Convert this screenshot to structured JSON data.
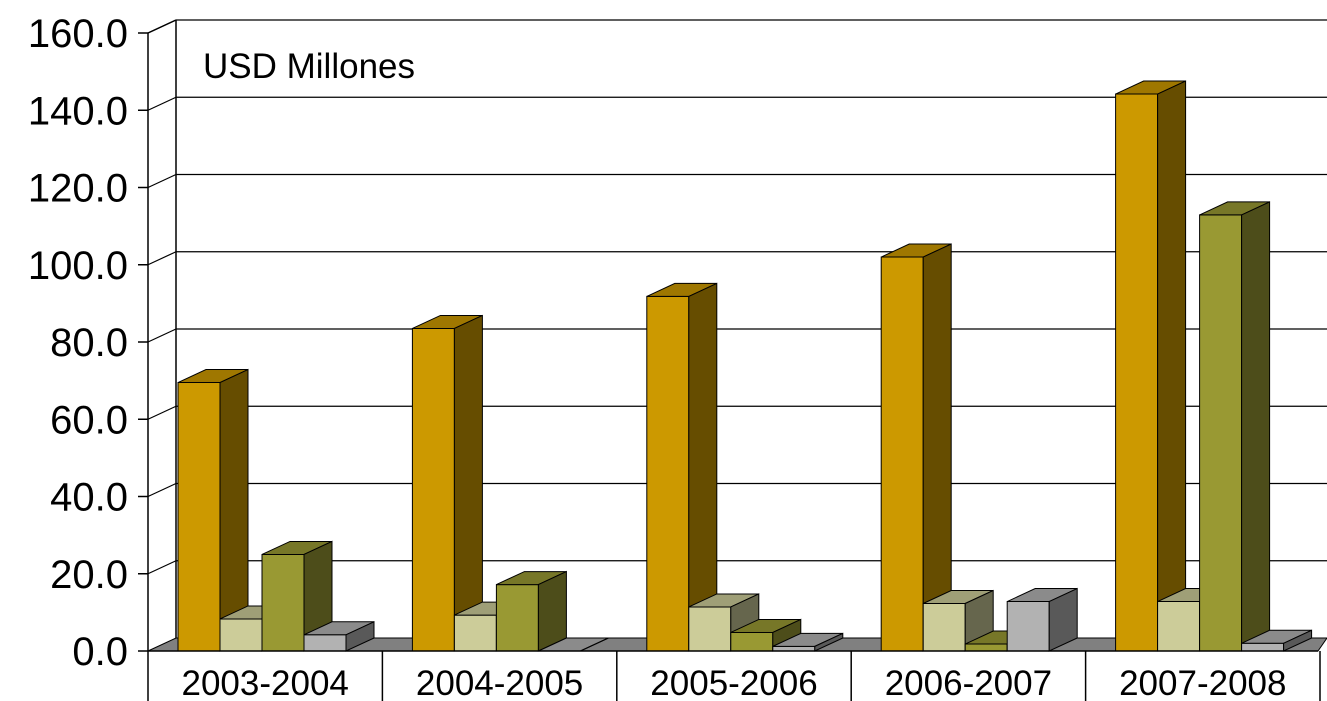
{
  "chart_data": {
    "type": "bar",
    "style": "3d-clustered-column",
    "unit_label": "USD Millones",
    "categories": [
      "2003-2004",
      "2004-2005",
      "2005-2006",
      "2006-2007",
      "2007-2008"
    ],
    "series": [
      {
        "values": [
          69.5,
          83.5,
          91.8,
          102.0,
          144.2
        ],
        "color": "#CC9900"
      },
      {
        "values": [
          8.3,
          9.3,
          11.4,
          12.3,
          12.8
        ],
        "color": "#CCCC99"
      },
      {
        "values": [
          25.0,
          17.2,
          4.8,
          1.8,
          112.9
        ],
        "color": "#999933"
      },
      {
        "values": [
          4.2,
          0.0,
          1.2,
          12.8,
          2.0
        ],
        "color": "#B2B2B2"
      }
    ],
    "yticks": [
      "160.0",
      "140.0",
      "120.0",
      "100.0",
      "80.0",
      "60.0",
      "40.0",
      "20.0",
      "0.0"
    ],
    "ylim": [
      0,
      160
    ],
    "grid": true,
    "legend": "none"
  }
}
